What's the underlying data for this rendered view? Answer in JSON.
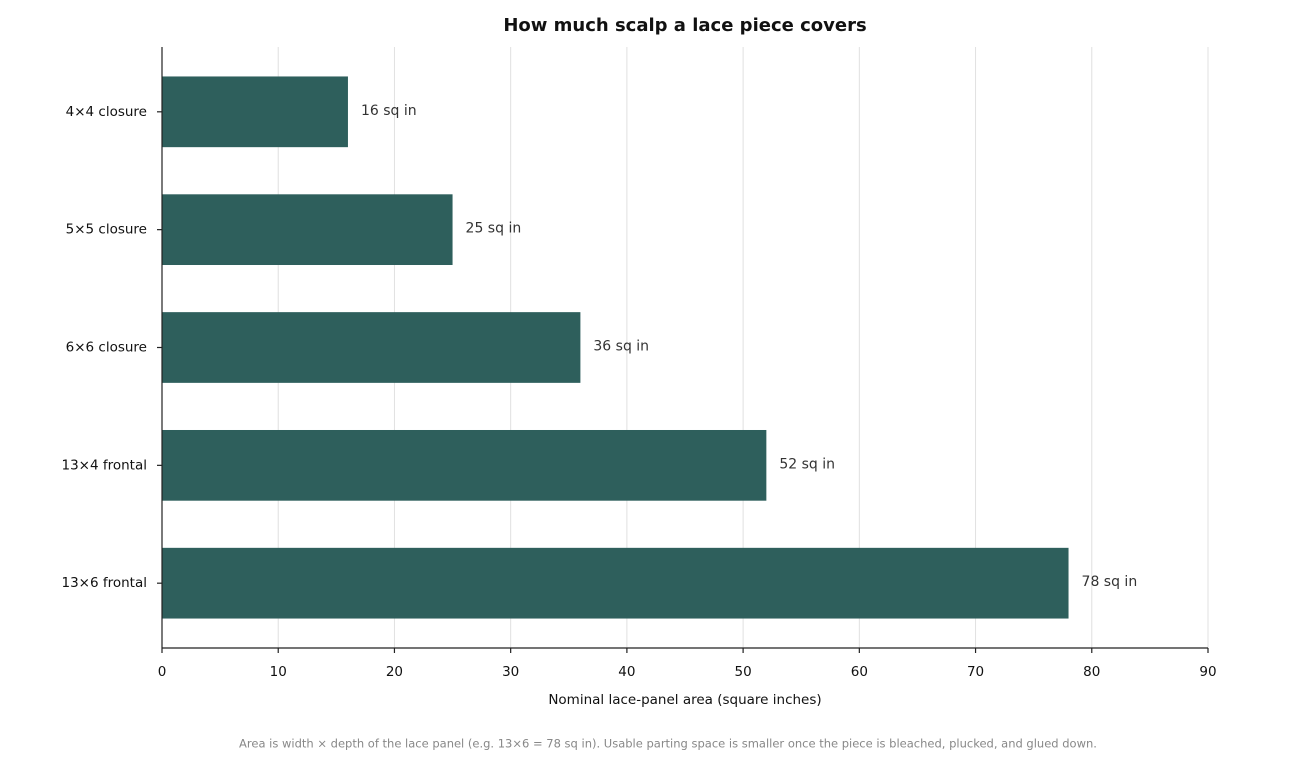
{
  "chart_data": {
    "type": "barh",
    "title": "How much scalp a lace piece covers",
    "categories": [
      "4×4 closure",
      "5×5 closure",
      "6×6 closure",
      "13×4 frontal",
      "13×6 frontal"
    ],
    "values": [
      16,
      25,
      36,
      52,
      78
    ],
    "value_labels": [
      "16 sq in",
      "25 sq in",
      "36 sq in",
      "52 sq in",
      "78 sq in"
    ],
    "color": "#2e5f5c",
    "xlim": [
      0,
      90
    ],
    "xticks": [
      0,
      10,
      20,
      30,
      40,
      50,
      60,
      70,
      80,
      90
    ],
    "grid": true,
    "xlabel": "Nominal lace-panel area (square inches)",
    "footnote": "Area is width × depth of the lace panel (e.g. 13×6 = 78 sq in). Usable parting space is smaller once the piece is bleached, plucked, and glued down."
  }
}
